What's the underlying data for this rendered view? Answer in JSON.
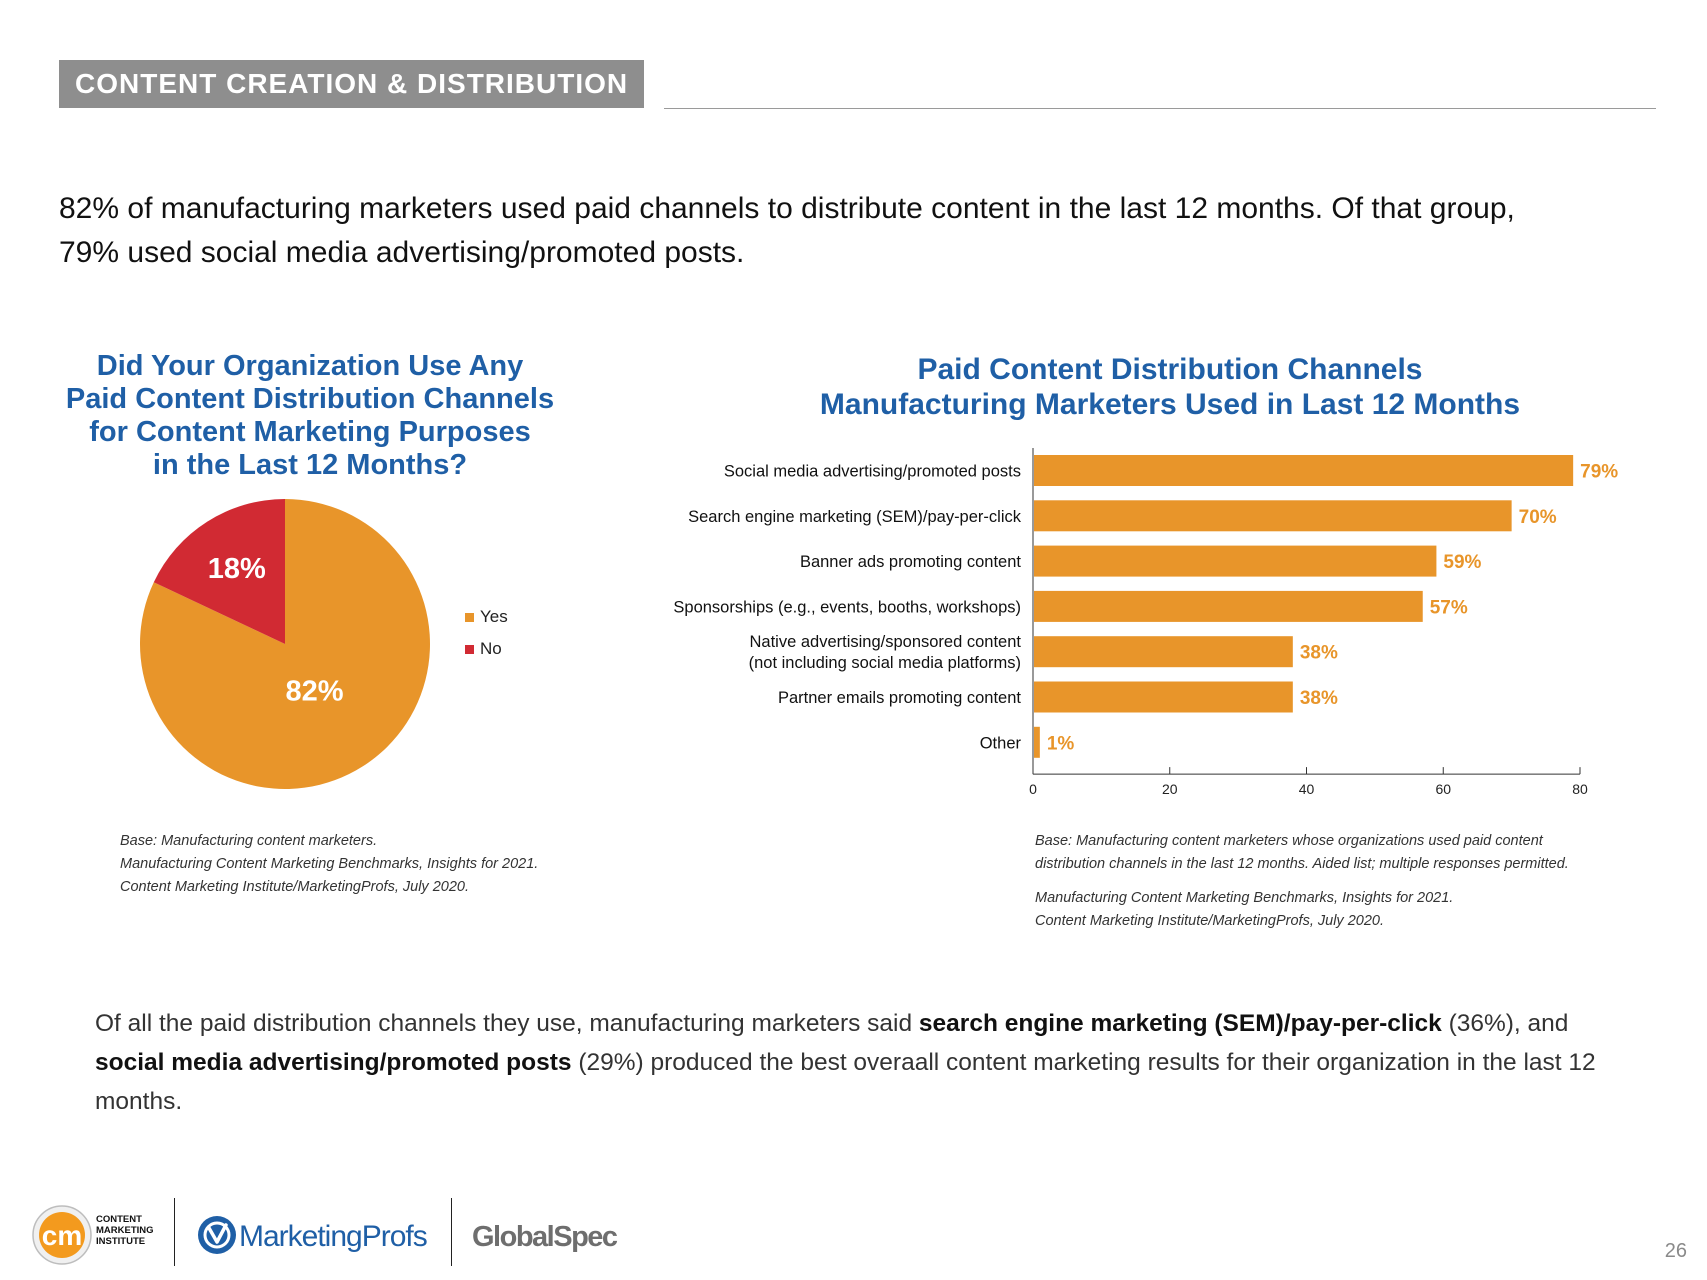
{
  "section": {
    "title": "CONTENT CREATION & DISTRIBUTION"
  },
  "headline": {
    "line1": "82% of manufacturing marketers used paid channels to distribute content in the last 12 months. Of that group,",
    "line2": "79% used social media advertising/promoted posts."
  },
  "colors": {
    "orange": "#e8952a",
    "red": "#d12a33",
    "blue": "#1f5fa6",
    "gray": "#8e8e8e"
  },
  "pie_title": {
    "line1": "Did Your Organization Use Any",
    "line2": "Paid Content Distribution Channels",
    "line3": "for Content Marketing Purposes",
    "line4": "in the Last 12 Months?"
  },
  "bar_title": {
    "line1": "Paid Content Distribution Channels",
    "line2": "Manufacturing Marketers Used in Last 12 Months"
  },
  "chart_data": [
    {
      "type": "pie",
      "title": "Did Your Organization Use Any Paid Content Distribution Channels for Content Marketing Purposes in the Last 12 Months?",
      "slices": [
        {
          "label": "Yes",
          "value": 82,
          "display": "82%",
          "color": "#e8952a"
        },
        {
          "label": "No",
          "value": 18,
          "display": "18%",
          "color": "#d12a33"
        }
      ],
      "legend_position": "right"
    },
    {
      "type": "bar",
      "orientation": "horizontal",
      "title": "Paid Content Distribution Channels Manufacturing Marketers Used in Last 12 Months",
      "categories": [
        [
          "Social media advertising/promoted posts"
        ],
        [
          "Search engine marketing (SEM)/pay-per-click"
        ],
        [
          "Banner ads promoting content"
        ],
        [
          "Sponsorships (e.g., events, booths, workshops)"
        ],
        [
          "Native advertising/sponsored content",
          "(not including social media platforms)"
        ],
        [
          "Partner emails promoting content"
        ],
        [
          "Other"
        ]
      ],
      "values": [
        79,
        70,
        59,
        57,
        38,
        38,
        1
      ],
      "value_labels": [
        "79%",
        "70%",
        "59%",
        "57%",
        "38%",
        "38%",
        "1%"
      ],
      "xlim": [
        0,
        80
      ],
      "xticks": [
        0,
        20,
        40,
        60,
        80
      ],
      "color": "#e8952a",
      "grid": false
    }
  ],
  "pie_source": {
    "line1": "Base: Manufacturing content marketers.",
    "line2": "Manufacturing Content Marketing Benchmarks, Insights for 2021.",
    "line3": "Content Marketing Institute/MarketingProfs, July 2020."
  },
  "bar_source": {
    "line1": "Base: Manufacturing content marketers whose organizations used paid content",
    "line2": "distribution channels in the last 12 months. Aided list; multiple responses permitted.",
    "line3": "Manufacturing Content Marketing Benchmarks, Insights for 2021.",
    "line4": "Content Marketing Institute/MarketingProfs, July 2020."
  },
  "bottom_text": {
    "p1": "Of all the paid distribution channels they use, manufacturing marketers said ",
    "b1": "search engine marketing (SEM)/pay-per-click",
    "p2": " (36%), and ",
    "b2": "social media advertising/promoted posts",
    "p3": " (29%) produced the best overaall content marketing results for their organization in the last 12 months."
  },
  "footer": {
    "cmi_mark": "cm",
    "cmi_line1": "CONTENT",
    "cmi_line2": "MARKETING",
    "cmi_line3": "INSTITUTE",
    "marketingprofs": "MarketingProfs",
    "globalspec": "GlobalSpec"
  },
  "page_number": "26"
}
